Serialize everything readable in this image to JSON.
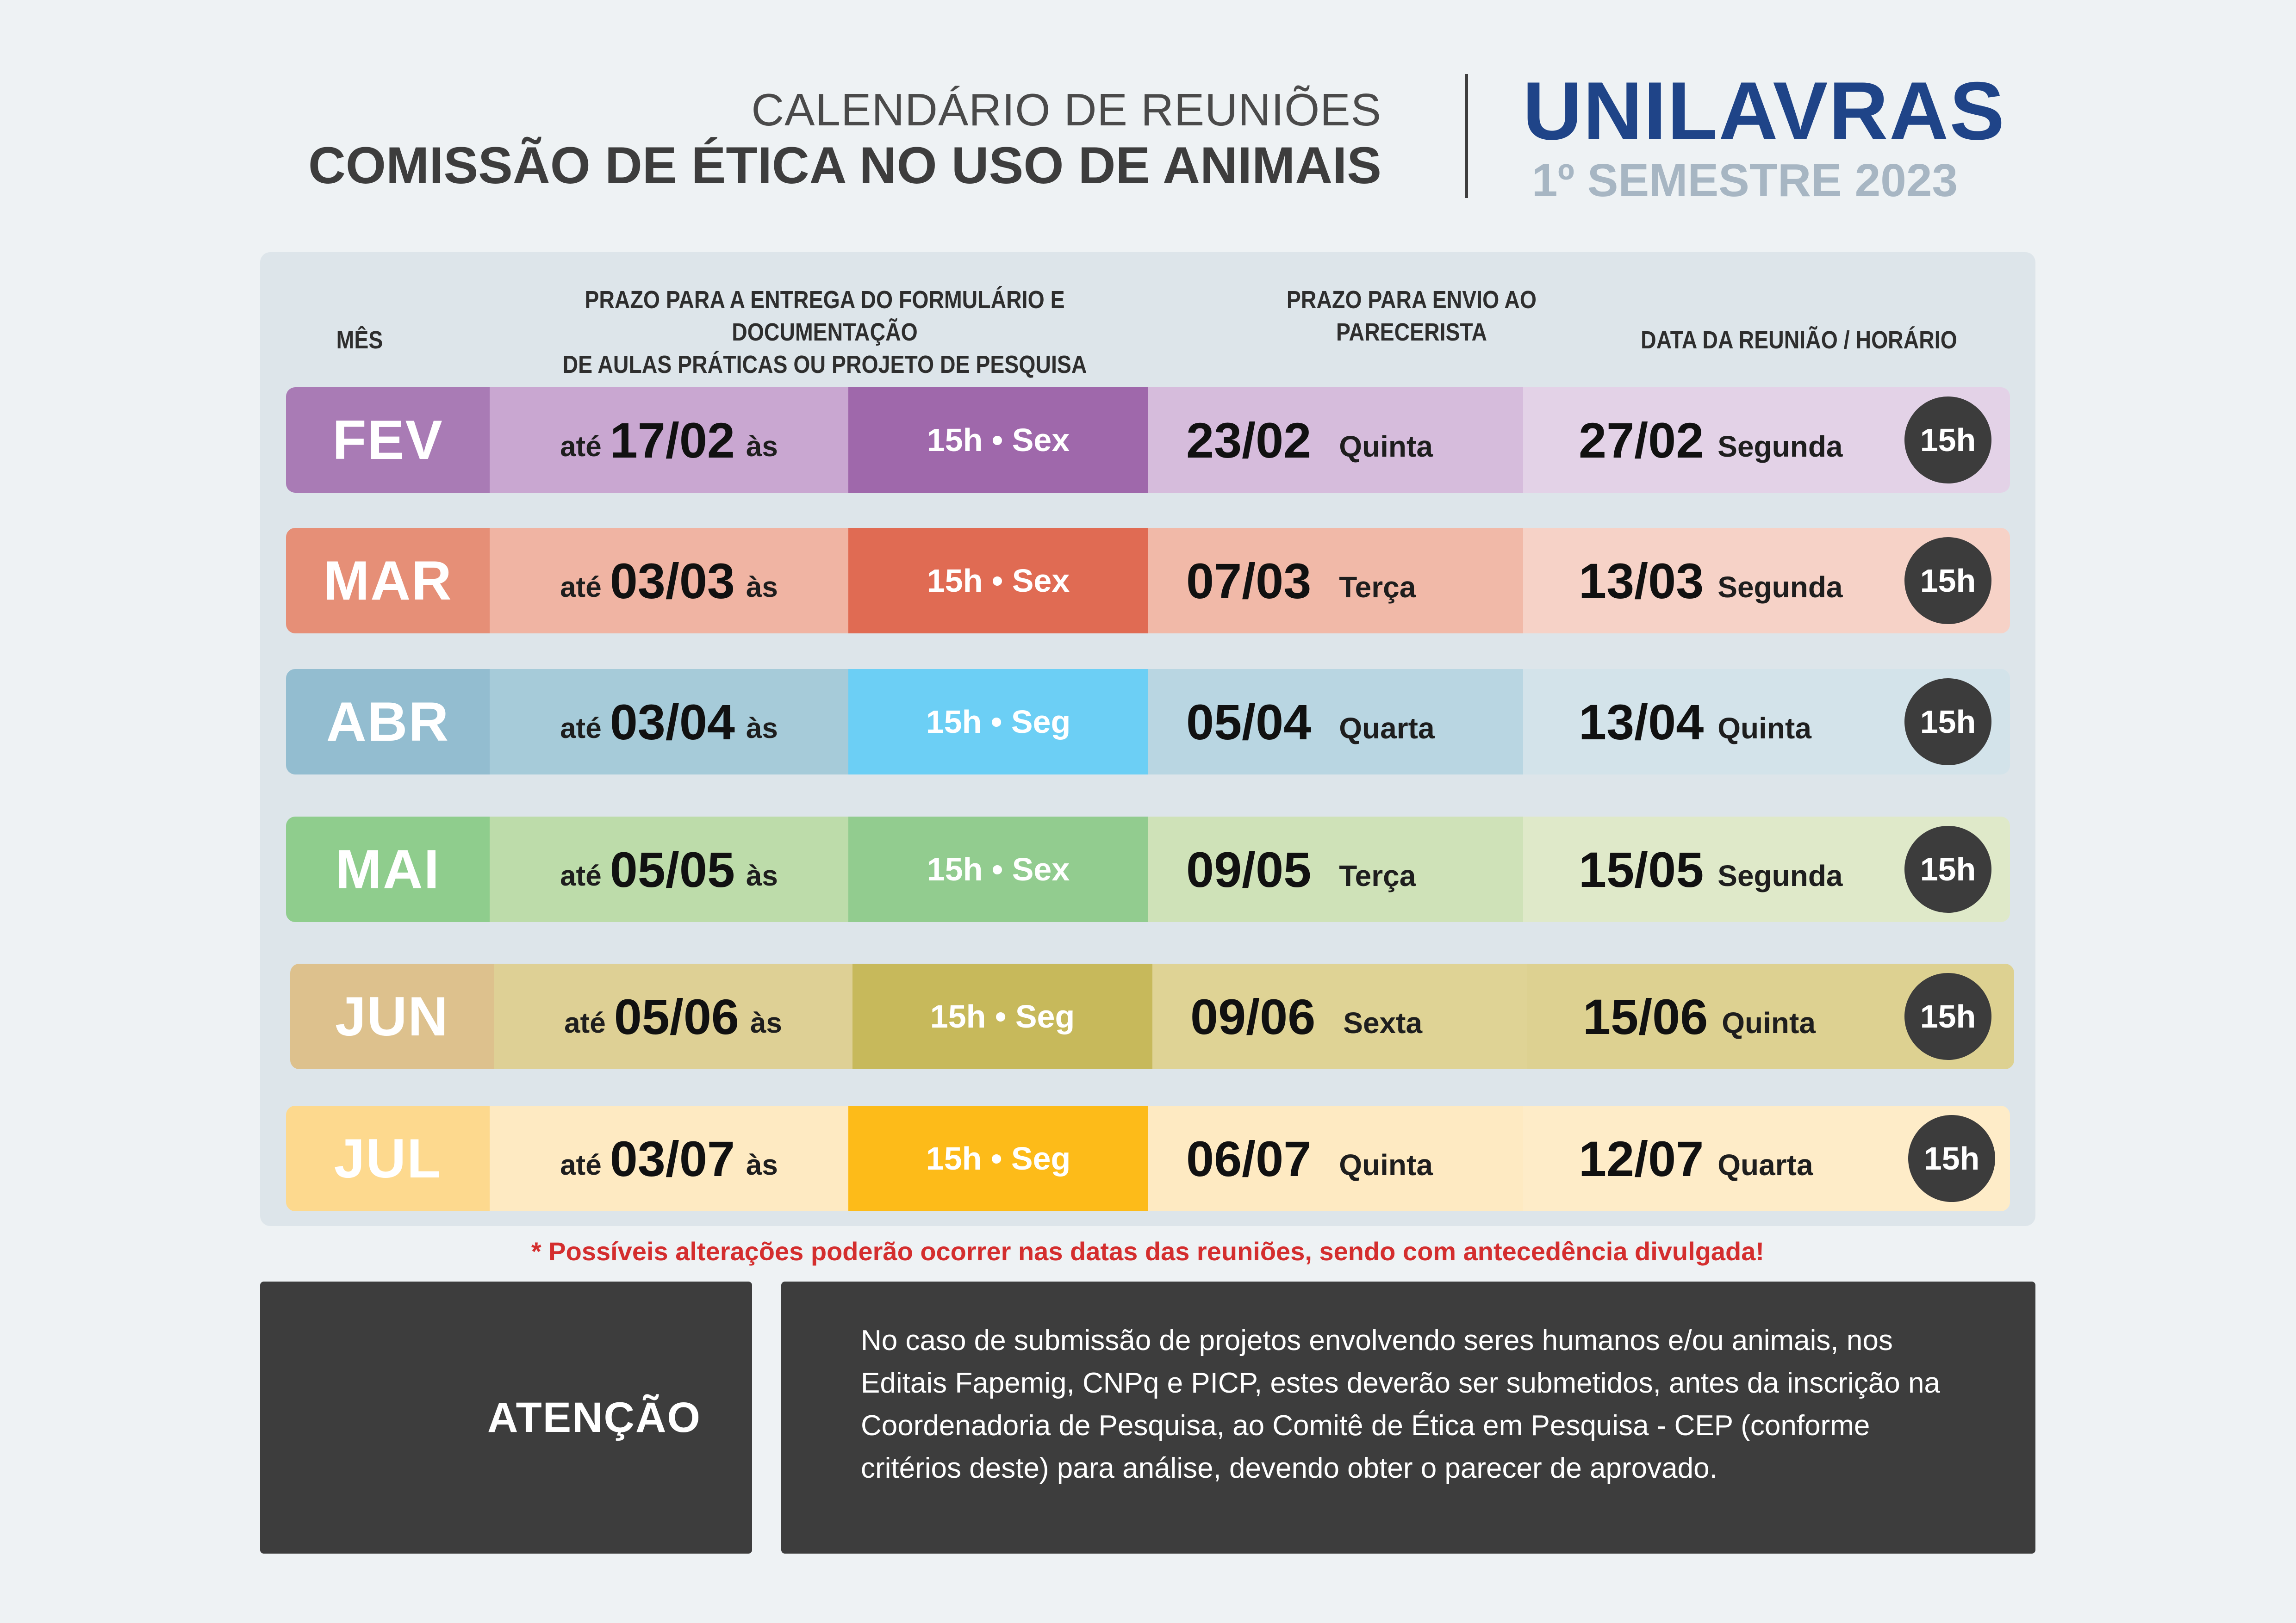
{
  "header": {
    "subtitle": "CALENDÁRIO DE REUNIÕES",
    "title": "COMISSÃO DE ÉTICA NO USO DE ANIMAIS",
    "brand": "UNILAVRAS",
    "semester": "1º SEMESTRE 2023"
  },
  "table": {
    "col_month": "MÊS",
    "col_deadline_l1": "PRAZO PARA A ENTREGA DO FORMULÁRIO E DOCUMENTAÇÃO",
    "col_deadline_l2": "DE AULAS PRÁTICAS OU PROJETO DE PESQUISA",
    "col_parecer_l1": "PRAZO PARA ENVIO AO",
    "col_parecer_l2": "PARECERISTA",
    "col_meeting": "DATA DA REUNIÃO / HORÁRIO",
    "until_label": "até",
    "at_label": "às",
    "rows": [
      {
        "month": "FEV",
        "deadline": "17/02",
        "time": "15h • Sex",
        "parecer_date": "23/02",
        "parecer_day": "Quinta",
        "meeting_date": "27/02",
        "meeting_day": "Segunda",
        "hour": "15h"
      },
      {
        "month": "MAR",
        "deadline": "03/03",
        "time": "15h • Sex",
        "parecer_date": "07/03",
        "parecer_day": "Terça",
        "meeting_date": "13/03",
        "meeting_day": "Segunda",
        "hour": "15h"
      },
      {
        "month": "ABR",
        "deadline": "03/04",
        "time": "15h • Seg",
        "parecer_date": "05/04",
        "parecer_day": "Quarta",
        "meeting_date": "13/04",
        "meeting_day": "Quinta",
        "hour": "15h"
      },
      {
        "month": "MAI",
        "deadline": "05/05",
        "time": "15h • Sex",
        "parecer_date": "09/05",
        "parecer_day": "Terça",
        "meeting_date": "15/05",
        "meeting_day": "Segunda",
        "hour": "15h"
      },
      {
        "month": "JUN",
        "deadline": "05/06",
        "time": "15h • Seg",
        "parecer_date": "09/06",
        "parecer_day": "Sexta",
        "meeting_date": "15/06",
        "meeting_day": "Quinta",
        "hour": "15h"
      },
      {
        "month": "JUL",
        "deadline": "03/07",
        "time": "15h • Seg",
        "parecer_date": "06/07",
        "parecer_day": "Quinta",
        "meeting_date": "12/07",
        "meeting_day": "Quarta",
        "hour": "15h"
      }
    ]
  },
  "note": "* Possíveis alterações poderão ocorrer nas  datas das reuniões, sendo com antecedência divulgada!",
  "attention": {
    "label": "ATENÇÃO",
    "text": "No caso de submissão de projetos envolvendo seres humanos e/ou animais, nos Editais Fapemig, CNPq e PICP, estes deverão ser submetidos, antes da inscrição na Coordenadoria de Pesquisa, ao Comitê de Ética em Pesquisa - CEP (conforme critérios deste) para análise, devendo obter o parecer de aprovado."
  },
  "colors": {
    "brand": "#1f4488",
    "brand_semester": "#a7b6c3",
    "note": "#d42e2e",
    "dark_box": "#3d3d3d",
    "FEV": [
      "#a97bb5",
      "#c9a7d1",
      "#9f68ab",
      "#d6bcdc",
      "#e3d2e7"
    ],
    "MAR": [
      "#e68f77",
      "#f0b4a3",
      "#e06b53",
      "#f1b9a8",
      "#f6d2c7"
    ],
    "ABR": [
      "#93bdd0",
      "#a6cbd9",
      "#6ccff5",
      "#b9d6e2",
      "#d3e3ea"
    ],
    "MAI": [
      "#8fcd8d",
      "#bddcaa",
      "#92cc8f",
      "#cfe2b8",
      "#dfe9c9"
    ],
    "JUN": [
      "#ddc18d",
      "#ded095",
      "#c7b95b",
      "#dfd395",
      "#ddd191"
    ],
    "JUL": [
      "#fdd98e",
      "#feeac2",
      "#fdbb19",
      "#feeac2",
      "#feecc8"
    ]
  }
}
